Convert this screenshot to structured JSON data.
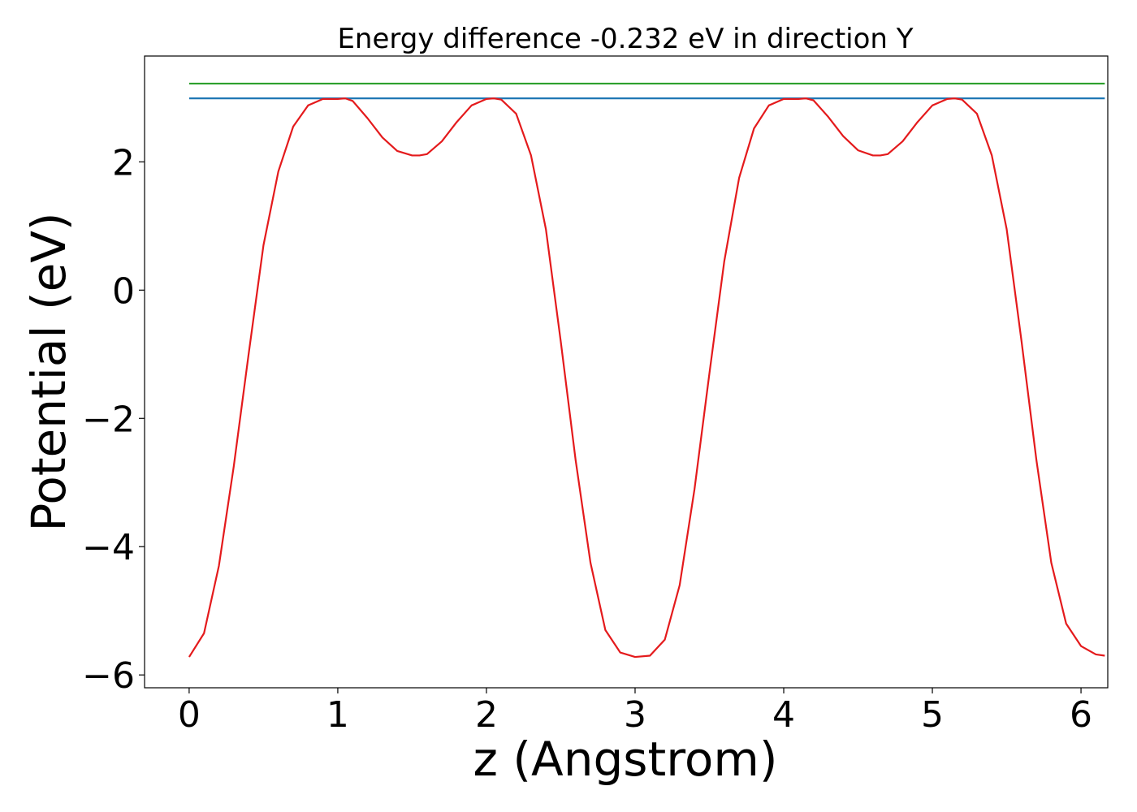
{
  "chart_data": {
    "type": "line",
    "title": "Energy difference -0.232 eV in direction Y",
    "xlabel": "z (Angstrom)",
    "ylabel": "Potential (eV)",
    "xlim": [
      -0.3,
      6.18
    ],
    "ylim": [
      -6.2,
      3.65
    ],
    "xticks": [
      0,
      1,
      2,
      3,
      4,
      5,
      6
    ],
    "xtick_labels": [
      "0",
      "1",
      "2",
      "3",
      "4",
      "5",
      "6"
    ],
    "yticks": [
      -6,
      -4,
      -2,
      0,
      2
    ],
    "ytick_labels": [
      "−6",
      "−4",
      "−2",
      "0",
      "2"
    ],
    "grid": false,
    "legend": "none",
    "series": [
      {
        "color": "#2ca02c",
        "x": [
          0,
          6.16
        ],
        "y": [
          3.22,
          3.22
        ]
      },
      {
        "color": "#1f77b4",
        "x": [
          0,
          6.16
        ],
        "y": [
          2.99,
          2.99
        ]
      },
      {
        "color": "#e41a1c",
        "x": [
          0,
          0.1,
          0.2,
          0.3,
          0.4,
          0.5,
          0.6,
          0.7,
          0.8,
          0.9,
          1.0,
          1.05,
          1.1,
          1.2,
          1.3,
          1.4,
          1.5,
          1.55,
          1.6,
          1.7,
          1.8,
          1.9,
          2.0,
          2.05,
          2.1,
          2.2,
          2.3,
          2.4,
          2.5,
          2.6,
          2.7,
          2.8,
          2.9,
          3.0,
          3.1,
          3.2,
          3.3,
          3.4,
          3.5,
          3.6,
          3.7,
          3.8,
          3.9,
          4.0,
          4.1,
          4.15,
          4.2,
          4.3,
          4.4,
          4.5,
          4.6,
          4.65,
          4.7,
          4.8,
          4.9,
          5.0,
          5.1,
          5.15,
          5.2,
          5.3,
          5.4,
          5.5,
          5.6,
          5.7,
          5.8,
          5.9,
          6.0,
          6.1,
          6.16
        ],
        "y": [
          -5.72,
          -5.35,
          -4.3,
          -2.75,
          -1.0,
          0.7,
          1.85,
          2.55,
          2.88,
          2.98,
          2.98,
          2.99,
          2.95,
          2.68,
          2.38,
          2.17,
          2.1,
          2.1,
          2.12,
          2.32,
          2.62,
          2.88,
          2.98,
          2.99,
          2.97,
          2.75,
          2.1,
          0.95,
          -0.8,
          -2.65,
          -4.25,
          -5.3,
          -5.65,
          -5.72,
          -5.7,
          -5.45,
          -4.6,
          -3.1,
          -1.3,
          0.45,
          1.75,
          2.52,
          2.88,
          2.98,
          2.98,
          2.99,
          2.96,
          2.7,
          2.4,
          2.18,
          2.1,
          2.1,
          2.12,
          2.32,
          2.62,
          2.88,
          2.98,
          2.99,
          2.97,
          2.75,
          2.1,
          0.95,
          -0.8,
          -2.65,
          -4.25,
          -5.2,
          -5.55,
          -5.68,
          -5.7
        ]
      }
    ]
  }
}
